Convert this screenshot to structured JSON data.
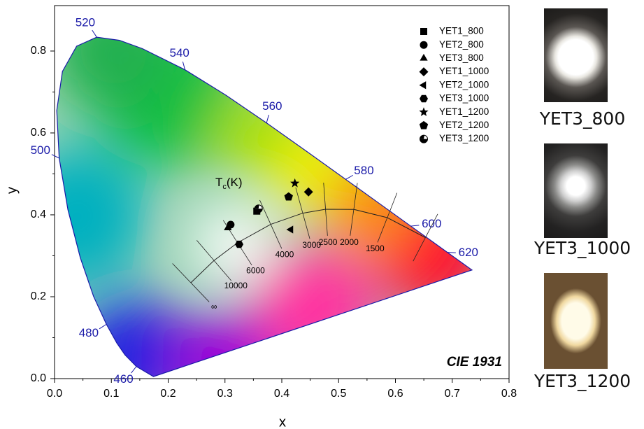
{
  "chart_data": {
    "type": "scatter",
    "title": "CIE 1931",
    "x_label": "x",
    "y_label": "y",
    "xlim": [
      0,
      0.8
    ],
    "ylim": [
      0,
      0.911
    ],
    "xticks": [
      {
        "value": 0,
        "label": "0.0"
      },
      0.1,
      0.2,
      0.3,
      0.4,
      0.5,
      0.6,
      0.7,
      {
        "value": 0.8,
        "label": "0.8"
      }
    ],
    "yticks": [
      {
        "value": 0,
        "label": "0.0"
      },
      0.2,
      0.4,
      0.6,
      0.8
    ],
    "legend": "upper right",
    "series": [
      {
        "name": "YET1_800",
        "marker": "square",
        "color": "#000000",
        "x": [
          0.356
        ],
        "values": [
          0.409
        ]
      },
      {
        "name": "YET2_800",
        "marker": "circle",
        "color": "#000000",
        "x": [
          0.31
        ],
        "values": [
          0.376
        ]
      },
      {
        "name": "YET3_800",
        "marker": "triangle",
        "color": "#000000",
        "x": [
          0.305
        ],
        "values": [
          0.368
        ]
      },
      {
        "name": "YET1_1000",
        "marker": "diamond",
        "color": "#000000",
        "x": [
          0.447
        ],
        "values": [
          0.456
        ]
      },
      {
        "name": "YET2_1000",
        "marker": "triangle-left",
        "color": "#000000",
        "x": [
          0.416
        ],
        "values": [
          0.364
        ]
      },
      {
        "name": "YET3_1000",
        "marker": "hexagon",
        "color": "#000000",
        "x": [
          0.325
        ],
        "values": [
          0.328
        ]
      },
      {
        "name": "YET1_1200",
        "marker": "star",
        "color": "#000000",
        "x": [
          0.423
        ],
        "values": [
          0.477
        ]
      },
      {
        "name": "YET2_1200",
        "marker": "pentagon",
        "color": "#000000",
        "x": [
          0.412
        ],
        "values": [
          0.444
        ]
      },
      {
        "name": "YET3_1200",
        "marker": "half-circle",
        "color": "#000000",
        "x": [
          0.359
        ],
        "values": [
          0.415
        ]
      }
    ],
    "spectral_locus": {
      "color": "#1a1aa8",
      "x": [
        0.1741,
        0.144,
        0.1241,
        0.1096,
        0.0913,
        0.0687,
        0.0454,
        0.0235,
        0.0082,
        0.0039,
        0.0139,
        0.0389,
        0.0743,
        0.1142,
        0.1547,
        0.2296,
        0.3016,
        0.3731,
        0.4441,
        0.5125,
        0.5752,
        0.627,
        0.6658,
        0.6915,
        0.719,
        0.7347
      ],
      "y": [
        0.005,
        0.0297,
        0.0578,
        0.0868,
        0.1327,
        0.2007,
        0.295,
        0.4127,
        0.5384,
        0.6548,
        0.7502,
        0.812,
        0.8338,
        0.8262,
        0.8059,
        0.7543,
        0.6923,
        0.6245,
        0.5547,
        0.4866,
        0.4242,
        0.3725,
        0.334,
        0.3083,
        0.2809,
        0.2653
      ],
      "labels": [
        null,
        "460",
        null,
        null,
        "480",
        null,
        null,
        null,
        "500",
        null,
        null,
        null,
        "520",
        null,
        null,
        "540",
        null,
        "560",
        null,
        "580",
        null,
        "600",
        null,
        "620",
        null,
        null
      ]
    },
    "planckian_locus": {
      "x": [
        0.2399,
        0.2807,
        0.3221,
        0.3805,
        0.4369,
        0.477,
        0.5267,
        0.5857,
        0.6528
      ],
      "y": [
        0.2342,
        0.2884,
        0.3318,
        0.3768,
        0.4041,
        0.4137,
        0.4133,
        0.3931,
        0.3444
      ],
      "labels": [
        "∞",
        "10000",
        "6000",
        "4000",
        "3000",
        "2500",
        "2000",
        "1500",
        null
      ]
    },
    "tc_label": {
      "main": "T",
      "sub": "c",
      "rest": "(K)"
    },
    "photos": [
      "YET3_800",
      "YET3_1000",
      "YET3_1200"
    ]
  }
}
